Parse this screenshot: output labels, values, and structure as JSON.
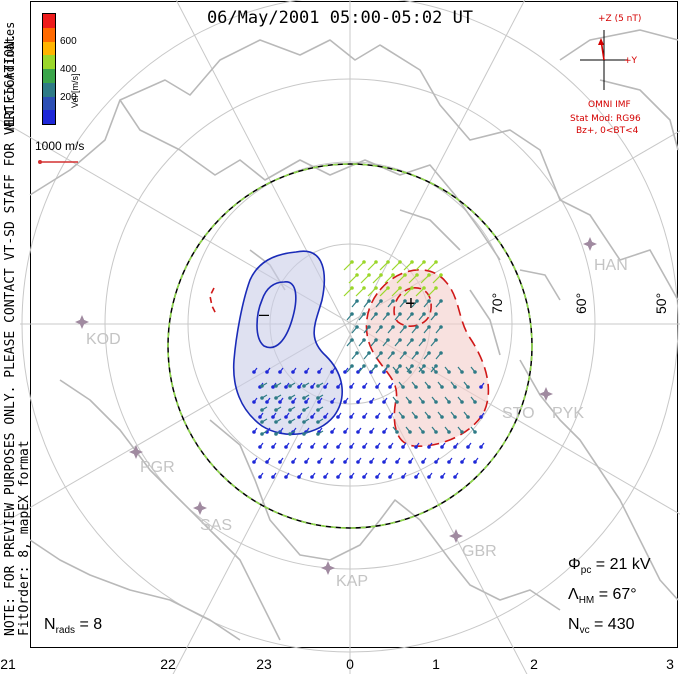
{
  "title": "06/May/2001 05:00-05:02 UT",
  "side_notes": {
    "preview": "NOTE: FOR PREVIEW PURPOSES ONLY. PLEASE CONTACT VT-SD STAFF FOR VERIFICATION.",
    "fit": "FitOrder: 8, mapEX format",
    "coords": "MLT coordinates"
  },
  "colorbar": {
    "label": "Vel [m/s]",
    "ticks": [
      "600",
      "400",
      "200"
    ],
    "colors": [
      "#ee1c1c",
      "#ff6a00",
      "#ffb400",
      "#9bd72a",
      "#3aa54a",
      "#2e7b86",
      "#2c4fb4",
      "#1e28d8"
    ]
  },
  "reference_vector": {
    "label": "1000 m/s",
    "color": "#d43030"
  },
  "imf_panel": {
    "plus_z": "+Z (5 nT)",
    "plus_y": "+Y",
    "source": "OMNI IMF",
    "model": "Stat Mod: RG96",
    "condition": "Bz+, 0<BT<4",
    "color": "#d40000"
  },
  "latitude_labels": [
    "70°",
    "60°",
    "50°"
  ],
  "station_labels": [
    "KOD",
    "PGR",
    "SAS",
    "KAP",
    "GBR",
    "STO",
    "PYK",
    "HAN"
  ],
  "potential_labels": {
    "min": "–",
    "max": "+"
  },
  "stats": {
    "phi_symbol": "Φ",
    "phi_sub": "pc",
    "phi_value": "= 21 kV",
    "lambda_symbol": "Λ",
    "lambda_sub": "HM",
    "lambda_value": "= 67°",
    "nvc_symbol": "N",
    "nvc_sub": "vc",
    "nvc_value": "= 430",
    "nrads_symbol": "N",
    "nrads_sub": "rads",
    "nrads_value": "= 8"
  },
  "hour_axis": [
    "21",
    "22",
    "23",
    "0",
    "1",
    "2",
    "3"
  ],
  "colors": {
    "negative_cell_fill": "#c9cde8",
    "negative_cell_line": "#1a2bb8",
    "positive_cell_fill": "#f3cdc9",
    "positive_cell_line": "#d01818",
    "land": "#b9b9b9",
    "grid": "#c8c8c8",
    "boundary_dash": "#8fd84a",
    "station_marker": "#a08aa0",
    "vector_slow": "#1e28d8",
    "vector_mid": "#2e7b86",
    "vector_fast": "#9bd72a"
  }
}
